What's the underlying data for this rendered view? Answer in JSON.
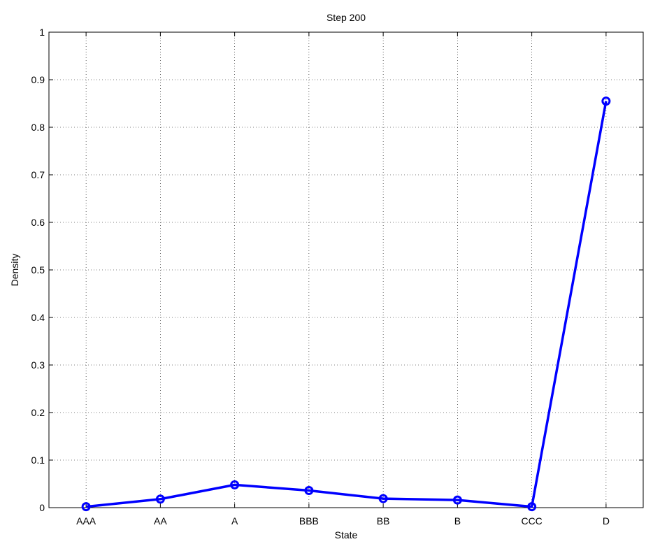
{
  "chart_data": {
    "type": "line",
    "title": "Step 200",
    "xlabel": "State",
    "ylabel": "Density",
    "categories": [
      "AAA",
      "AA",
      "A",
      "BBB",
      "BB",
      "B",
      "CCC",
      "D"
    ],
    "series": [
      {
        "values": [
          0.002,
          0.018,
          0.048,
          0.036,
          0.019,
          0.016,
          0.002,
          0.855
        ],
        "color": "#0000ff",
        "marker": "circle"
      }
    ],
    "ylim": [
      0,
      1
    ],
    "yticks": [
      "0",
      "0.1",
      "0.2",
      "0.3",
      "0.4",
      "0.5",
      "0.6",
      "0.7",
      "0.8",
      "0.9",
      "1"
    ],
    "grid": true,
    "legend": false
  }
}
